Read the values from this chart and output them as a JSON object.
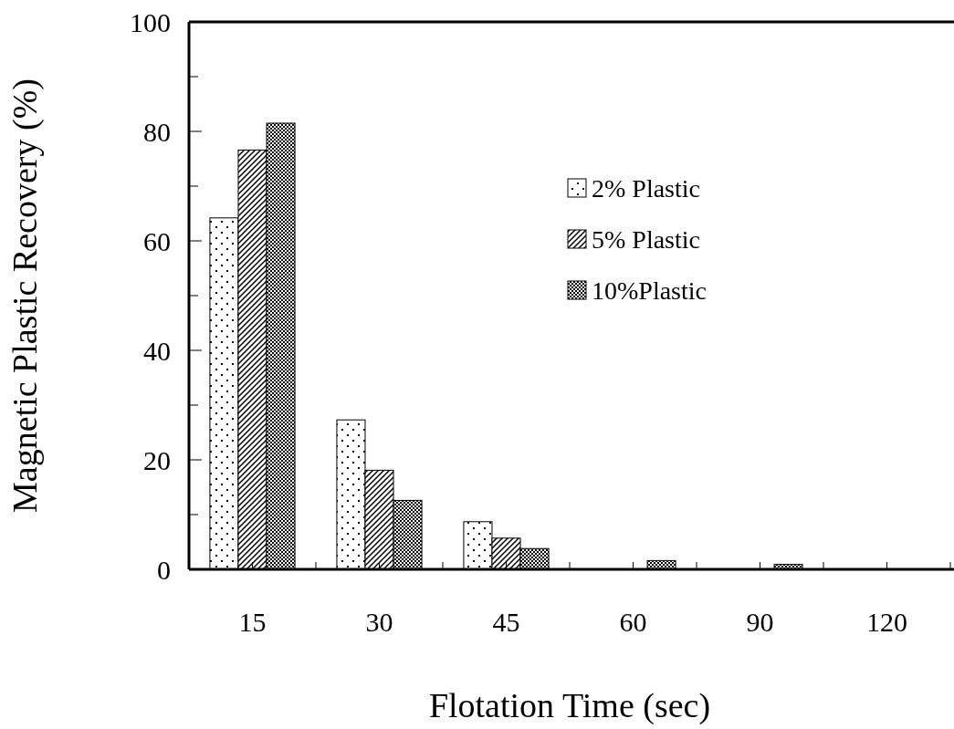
{
  "chart_data": {
    "type": "bar",
    "xlabel": "Flotation Time (sec)",
    "ylabel": "Magnetic Plastic Recovery (%)",
    "categories": [
      "15",
      "30",
      "45",
      "60",
      "90",
      "120"
    ],
    "series": [
      {
        "name": "2% Plastic",
        "color": "#000000",
        "values": [
          64.2,
          27.3,
          8.7,
          0,
          0,
          0
        ]
      },
      {
        "name": "5% Plastic",
        "color": "#000000",
        "values": [
          76.6,
          18.1,
          5.7,
          0,
          0,
          0
        ]
      },
      {
        "name": "10%Plastic",
        "color": "#000000",
        "values": [
          81.5,
          12.6,
          3.8,
          1.6,
          0.9,
          0
        ]
      }
    ],
    "ylim": [
      0,
      100
    ],
    "yticks": [
      0,
      {
        "value": 10,
        "label": null
      },
      20,
      {
        "value": 30,
        "label": null
      },
      40,
      {
        "value": 50,
        "label": null
      },
      60,
      {
        "value": 70,
        "label": null
      },
      80,
      {
        "value": 90,
        "label": null
      },
      100
    ],
    "grid": false,
    "legend": "top right"
  }
}
